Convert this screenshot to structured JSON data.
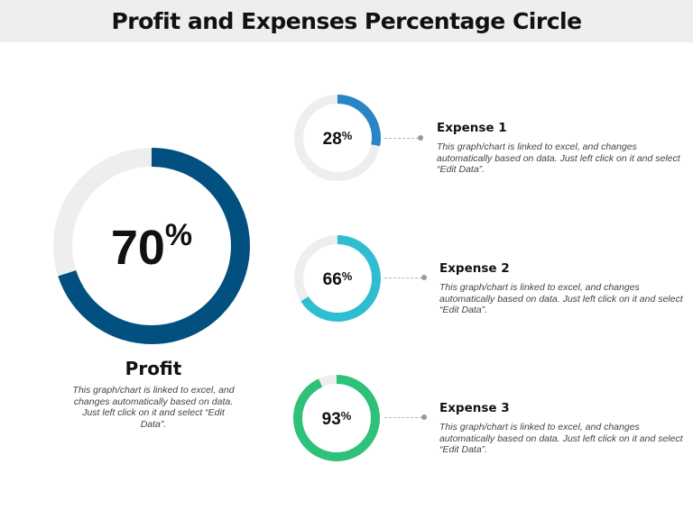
{
  "header": {
    "title": "Profit and Expenses Percentage Circle"
  },
  "colors": {
    "track": "#eeeeee",
    "profit": "#02507f",
    "expense1": "#2a85c4",
    "expense2": "#2fbdd1",
    "expense3": "#2ec17a"
  },
  "chart_data": [
    {
      "type": "pie",
      "style": "donut",
      "name": "Profit",
      "value": 70,
      "label": "70%",
      "color": "#02507f",
      "description": "This graph/chart is linked to excel, and changes automatically based on data. Just left click on it and select “Edit Data”."
    },
    {
      "type": "pie",
      "style": "donut",
      "name": "Expense 1",
      "value": 28,
      "label": "28%",
      "color": "#2a85c4",
      "description": "This graph/chart is linked to excel, and changes automatically based on data. Just left click on it and select “Edit Data”."
    },
    {
      "type": "pie",
      "style": "donut",
      "name": "Expense 2",
      "value": 66,
      "label": "66%",
      "color": "#2fbdd1",
      "description": "This graph/chart is linked to excel, and changes automatically based on data. Just left click on it and select “Edit Data”."
    },
    {
      "type": "pie",
      "style": "donut",
      "name": "Expense 3",
      "value": 93,
      "label": "93%",
      "color": "#2ec17a",
      "description": "This graph/chart is linked to excel, and changes automatically based on data. Just left click on it and select “Edit Data”."
    }
  ],
  "labels": {
    "profit_value": "70",
    "expense1_value": "28",
    "expense2_value": "66",
    "expense3_value": "93",
    "percent": "%"
  }
}
